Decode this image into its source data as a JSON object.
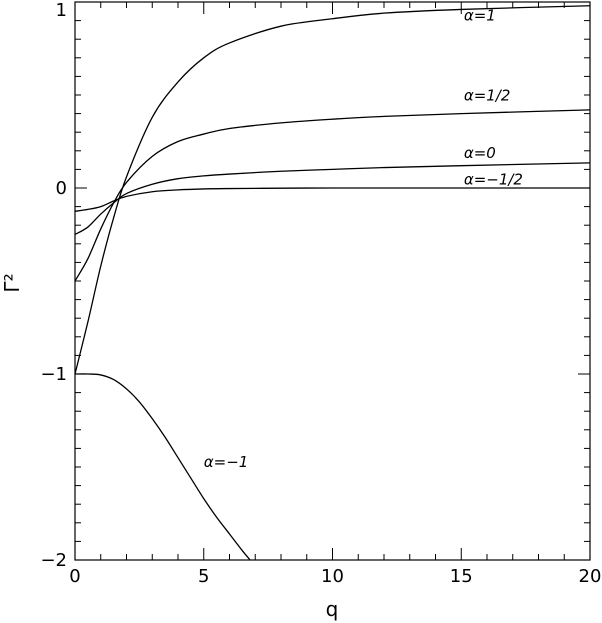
{
  "chart_data": {
    "type": "line",
    "title": "",
    "xlabel": "q",
    "ylabel": "Γ²",
    "xlim": [
      0,
      20
    ],
    "ylim": [
      -2,
      1
    ],
    "grid": false,
    "x_ticks": [
      0,
      5,
      10,
      15,
      20
    ],
    "x_tick_labels": [
      "0",
      "5",
      "10",
      "15",
      "20"
    ],
    "y_ticks": [
      -2,
      -1,
      0,
      1
    ],
    "y_tick_labels": [
      "−2",
      "−1",
      "0",
      "1"
    ],
    "series": [
      {
        "name": "α=1",
        "x": [
          0,
          0.5,
          1,
          1.5,
          2,
          3,
          4,
          5,
          6,
          8,
          10,
          12,
          15,
          20
        ],
        "y": [
          -1,
          -0.72,
          -0.42,
          -0.16,
          0.06,
          0.38,
          0.57,
          0.7,
          0.78,
          0.87,
          0.91,
          0.94,
          0.96,
          0.98
        ]
      },
      {
        "name": "α=1/2",
        "x": [
          0,
          0.5,
          1,
          1.5,
          2,
          3,
          4,
          5,
          6,
          8,
          10,
          12,
          15,
          20
        ],
        "y": [
          -0.5,
          -0.38,
          -0.22,
          -0.08,
          0.03,
          0.17,
          0.25,
          0.29,
          0.32,
          0.35,
          0.37,
          0.385,
          0.4,
          0.42
        ]
      },
      {
        "name": "α=0",
        "x": [
          0,
          0.5,
          1,
          1.5,
          2,
          3,
          4,
          5,
          6,
          8,
          10,
          12,
          15,
          20
        ],
        "y": [
          -0.25,
          -0.21,
          -0.14,
          -0.08,
          -0.03,
          0.02,
          0.05,
          0.065,
          0.075,
          0.09,
          0.1,
          0.11,
          0.12,
          0.135
        ]
      },
      {
        "name": "α=−1/2",
        "x": [
          0,
          0.5,
          1,
          1.5,
          2,
          3,
          4,
          5,
          6,
          8,
          10,
          12,
          15,
          20
        ],
        "y": [
          -0.125,
          -0.115,
          -0.1,
          -0.07,
          -0.045,
          -0.02,
          -0.01,
          -0.005,
          -0.003,
          -0.001,
          0,
          0,
          0,
          0
        ]
      },
      {
        "name": "α=−1",
        "x": [
          0,
          0.5,
          1,
          1.5,
          2,
          2.5,
          3,
          3.5,
          4,
          4.5,
          5,
          5.5,
          6,
          6.5,
          6.8
        ],
        "y": [
          -1,
          -1.0,
          -1.005,
          -1.03,
          -1.08,
          -1.15,
          -1.24,
          -1.34,
          -1.45,
          -1.56,
          -1.67,
          -1.77,
          -1.86,
          -1.95,
          -2.0
        ]
      }
    ],
    "annotations": [
      {
        "text": "α=1",
        "x": 15.1,
        "y": 0.9
      },
      {
        "text": "α=1/2",
        "x": 15.1,
        "y": 0.47
      },
      {
        "text": "α=0",
        "x": 15.1,
        "y": 0.16
      },
      {
        "text": "α=−1/2",
        "x": 15.1,
        "y": 0.02
      },
      {
        "text": "α=−1",
        "x": 5.0,
        "y": -1.5
      }
    ]
  }
}
